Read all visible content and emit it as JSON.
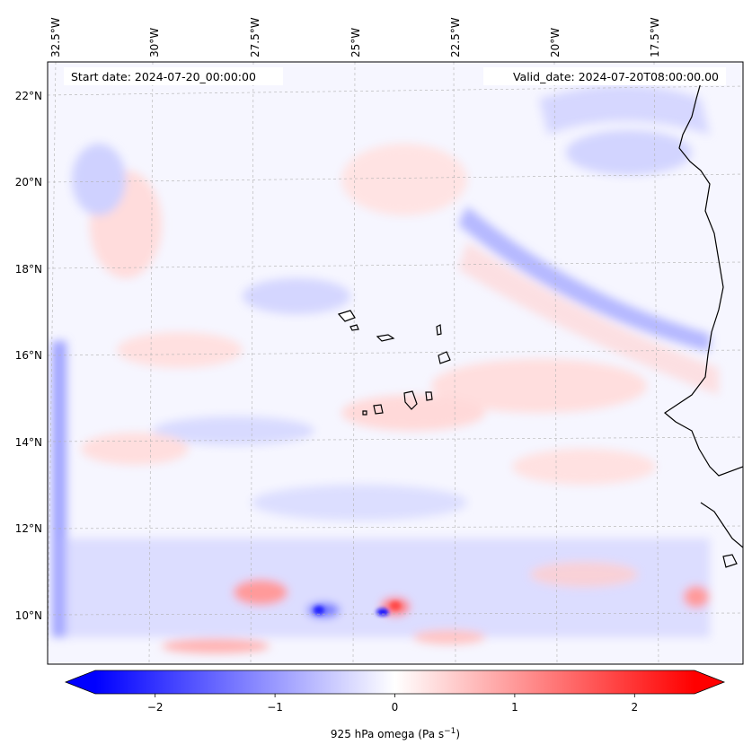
{
  "map": {
    "start_date": "Start date: 2024-07-20_00:00:00",
    "valid_date": "Valid_date: 2024-07-20T08:00:00.00",
    "lon_labels": [
      "32.5°W",
      "30°W",
      "27.5°W",
      "25°W",
      "22.5°W",
      "20°W",
      "17.5°W"
    ],
    "lat_labels": [
      "22°N",
      "20°N",
      "18°N",
      "16°N",
      "14°N",
      "12°N",
      "10°N"
    ],
    "colors": {
      "negative": "#0000ff",
      "zero": "#ffffff",
      "positive": "#ff0000",
      "coast": "#000000",
      "grid": "#b0b0b0"
    }
  },
  "colorbar": {
    "ticks": [
      "−2",
      "−1",
      "0",
      "1",
      "2"
    ],
    "tick_values": [
      -2,
      -1,
      0,
      1,
      2
    ],
    "range": [
      -2.5,
      2.5
    ],
    "label_main": "925 hPa omega (Pa s",
    "label_exp": "−1",
    "label_close": ")"
  }
}
